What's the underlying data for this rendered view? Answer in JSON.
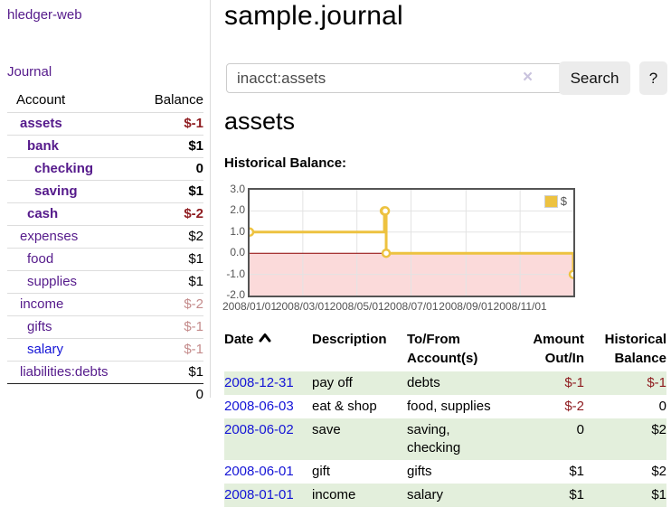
{
  "app": {
    "title": "hledger-web"
  },
  "sidebar": {
    "journal_link": "Journal",
    "accounts_table": {
      "headers": [
        "Account",
        "Balance"
      ],
      "rows": [
        {
          "account": "assets",
          "depth": 1,
          "emphasis": true,
          "balance": "$-1",
          "balance_class": "neg-bold"
        },
        {
          "account": "bank",
          "depth": 2,
          "emphasis": true,
          "balance": "$1",
          "balance_class": "pos-bold"
        },
        {
          "account": "checking",
          "depth": 3,
          "emphasis": true,
          "balance": "0",
          "balance_class": "pos-bold"
        },
        {
          "account": "saving",
          "depth": 3,
          "emphasis": true,
          "balance": "$1",
          "balance_class": "pos-bold"
        },
        {
          "account": "cash",
          "depth": 2,
          "emphasis": true,
          "balance": "$-2",
          "balance_class": "neg-bold"
        },
        {
          "account": "expenses",
          "depth": 1,
          "emphasis": false,
          "balance": "$2",
          "balance_class": ""
        },
        {
          "account": "food",
          "depth": 2,
          "emphasis": false,
          "balance": "$1",
          "balance_class": ""
        },
        {
          "account": "supplies",
          "depth": 2,
          "emphasis": false,
          "balance": "$1",
          "balance_class": ""
        },
        {
          "account": "income",
          "depth": 1,
          "emphasis": false,
          "balance": "$-2",
          "balance_class": "neg-muted"
        },
        {
          "account": "gifts",
          "depth": 2,
          "emphasis": false,
          "balance": "$-1",
          "balance_class": "neg-muted"
        },
        {
          "account": "salary",
          "depth": 2,
          "emphasis": false,
          "balance": "$-1",
          "balance_class": "neg-muted",
          "link_color": "blue"
        },
        {
          "account": "liabilities:debts",
          "depth": 1,
          "emphasis": false,
          "balance": "$1",
          "balance_class": ""
        }
      ],
      "total": "0"
    }
  },
  "main": {
    "title": "sample.journal",
    "search": {
      "value": "inacct:assets",
      "clear_icon": "×",
      "button_label": "Search",
      "help_label": "?"
    },
    "account_heading": "assets",
    "chart_heading": "Historical Balance:"
  },
  "chart_data": {
    "type": "line",
    "title": "Historical Balance:",
    "steps": true,
    "series": [
      {
        "name": "$",
        "color": "#edc240",
        "points": [
          {
            "x": "2008-01-01",
            "y": 1
          },
          {
            "x": "2008-06-01",
            "y": 2
          },
          {
            "x": "2008-06-02",
            "y": 2
          },
          {
            "x": "2008-06-03",
            "y": 0
          },
          {
            "x": "2008-12-31",
            "y": -1
          }
        ]
      }
    ],
    "x_ticks": [
      "2008/01/01",
      "2008/03/01",
      "2008/05/01",
      "2008/07/01",
      "2008/09/01",
      "2008/11/01"
    ],
    "y_ticks": [
      "3.0",
      "2.0",
      "1.0",
      "0.0",
      "-1.0",
      "-2.0"
    ],
    "xlim": [
      "2008-01-01",
      "2008-12-31"
    ],
    "ylim": [
      -2,
      3
    ],
    "grid": true,
    "legend_position": "top-right",
    "negative_region_color": "#fbdada",
    "zero_line_color": "#8b0000",
    "gridline_color": "#e3e3e3",
    "tick_color": "#545454"
  },
  "register": {
    "sort": "ascending",
    "headers": [
      [
        "Date",
        ""
      ],
      [
        "Description",
        ""
      ],
      [
        "To/From",
        "Account(s)"
      ],
      [
        "Amount",
        "Out/In"
      ],
      [
        "Historical",
        "Balance"
      ]
    ],
    "rows": [
      {
        "date": "2008-12-31",
        "description": "pay off",
        "accounts": "debts",
        "amount": "$-1",
        "amount_neg": true,
        "balance": "$-1",
        "balance_neg": true
      },
      {
        "date": "2008-06-03",
        "description": "eat & shop",
        "accounts": "food, supplies",
        "amount": "$-2",
        "amount_neg": true,
        "balance": "0",
        "balance_neg": false
      },
      {
        "date": "2008-06-02",
        "description": "save",
        "accounts": "saving, checking",
        "amount": "0",
        "amount_neg": false,
        "balance": "$2",
        "balance_neg": false
      },
      {
        "date": "2008-06-01",
        "description": "gift",
        "accounts": "gifts",
        "amount": "$1",
        "amount_neg": false,
        "balance": "$2",
        "balance_neg": false
      },
      {
        "date": "2008-01-01",
        "description": "income",
        "accounts": "salary",
        "amount": "$1",
        "amount_neg": false,
        "balance": "$1",
        "balance_neg": false
      }
    ]
  },
  "colors": {
    "link_purple": "#551a8b",
    "link_blue": "#1414d6",
    "negative_strong": "#8f1d21",
    "negative_muted": "#c48b8b",
    "row_stripe_green": "#e3efdc",
    "series_yellow": "#edc240",
    "chart_border": "#545454",
    "negative_region": "#fbdada",
    "zero_line": "#8b0000"
  }
}
